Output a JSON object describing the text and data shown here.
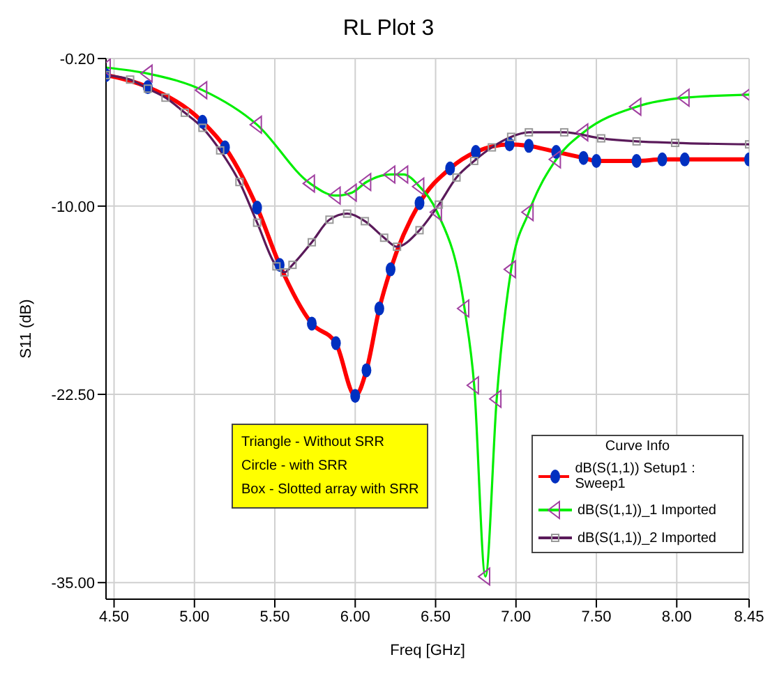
{
  "chart_data": {
    "type": "line",
    "title": "RL Plot 3",
    "xlabel": "Freq [GHz]",
    "ylabel": "S11 (dB)",
    "legend_title": "Curve Info",
    "legend": "bottom right",
    "grid": true,
    "xlim": [
      4.45,
      8.45
    ],
    "xticks": [
      {
        "value": 4.5,
        "label": "4.50"
      },
      {
        "value": 5,
        "label": "5.00"
      },
      {
        "value": 5.5,
        "label": "5.50"
      },
      {
        "value": 6,
        "label": "6.00"
      },
      {
        "value": 6.5,
        "label": "6.50"
      },
      {
        "value": 7,
        "label": "7.00"
      },
      {
        "value": 7.5,
        "label": "7.50"
      },
      {
        "value": 8,
        "label": "8.00"
      },
      {
        "value": 8.45,
        "label": "8.45"
      }
    ],
    "ylim": [
      -36.1,
      -0.2
    ],
    "yticks": [
      {
        "value": -0.2,
        "label": "-0.20"
      },
      {
        "value": -10,
        "label": "-10.00"
      },
      {
        "value": -22.5,
        "label": "-22.50"
      },
      {
        "value": -35,
        "label": "-35.00"
      }
    ],
    "annotations": [
      "Triangle - Without SRR",
      "Circle - with SRR",
      "Box - Slotted array with SRR"
    ],
    "series": [
      {
        "name": "dB(S(1,1)) Setup1 : Sweep1",
        "color": "#ff0000",
        "marker": "circle",
        "x": [
          4.45,
          4.71,
          5.05,
          5.19,
          5.39,
          5.53,
          5.73,
          5.88,
          6.0,
          6.07,
          6.15,
          6.22,
          6.4,
          6.59,
          6.75,
          6.96,
          7.08,
          7.25,
          7.42,
          7.5,
          7.75,
          7.91,
          8.05,
          8.45
        ],
        "values": [
          -1.3,
          -2.1,
          -4.4,
          -6.1,
          -10.1,
          -13.9,
          -17.8,
          -19.1,
          -22.6,
          -20.9,
          -16.8,
          -14.2,
          -9.8,
          -7.5,
          -6.4,
          -5.9,
          -6.0,
          -6.4,
          -6.8,
          -7.0,
          -7.0,
          -6.9,
          -6.9,
          -6.9
        ]
      },
      {
        "name": "dB(S(1,1))_1 Imported",
        "color": "#00ee00",
        "marker": "triangle",
        "x": [
          4.45,
          4.71,
          5.05,
          5.39,
          5.72,
          5.88,
          5.98,
          6.07,
          6.22,
          6.3,
          6.4,
          6.51,
          6.68,
          6.74,
          6.81,
          6.88,
          6.97,
          7.08,
          7.25,
          7.42,
          7.75,
          8.05,
          8.45
        ],
        "values": [
          -0.8,
          -1.2,
          -2.3,
          -4.6,
          -8.5,
          -9.3,
          -9.1,
          -8.4,
          -7.9,
          -7.9,
          -8.7,
          -10.4,
          -16.8,
          -21.9,
          -34.6,
          -22.8,
          -14.2,
          -10.4,
          -6.9,
          -5.1,
          -3.4,
          -2.8,
          -2.6
        ]
      },
      {
        "name": "dB(S(1,1))_2 Imported",
        "color": "#5a1a5a",
        "marker": "square",
        "x": [
          4.45,
          4.6,
          4.71,
          4.82,
          4.94,
          5.05,
          5.16,
          5.28,
          5.39,
          5.51,
          5.56,
          5.61,
          5.73,
          5.84,
          5.95,
          6.06,
          6.18,
          6.26,
          6.4,
          6.52,
          6.63,
          6.74,
          6.85,
          6.97,
          7.08,
          7.3,
          7.53,
          7.75,
          7.99,
          8.45
        ],
        "values": [
          -1.3,
          -1.6,
          -2.2,
          -2.8,
          -3.8,
          -4.8,
          -6.3,
          -8.4,
          -11.1,
          -14.0,
          -14.4,
          -13.9,
          -12.4,
          -10.9,
          -10.5,
          -11.0,
          -12.1,
          -12.7,
          -11.6,
          -9.9,
          -8.1,
          -7.0,
          -6.1,
          -5.4,
          -5.1,
          -5.1,
          -5.5,
          -5.7,
          -5.8,
          -5.9
        ]
      }
    ]
  }
}
